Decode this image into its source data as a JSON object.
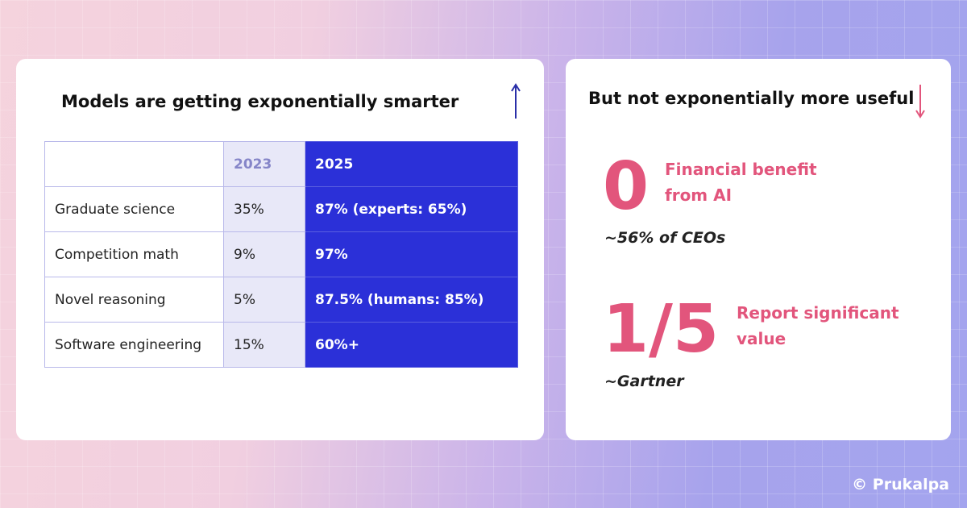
{
  "left_card": {
    "title": "Models are getting exponentially smarter",
    "table": {
      "headers": [
        "2023",
        "2025"
      ],
      "rows": [
        [
          "Graduate science",
          "35%",
          "87% (experts: 65%)"
        ],
        [
          "Competition math",
          "9%",
          "97%"
        ],
        [
          "Novel reasoning",
          "5%",
          "87.5% (humans: 85%)"
        ],
        [
          "Software engineering",
          "15%",
          "60%+"
        ]
      ]
    }
  },
  "right_card": {
    "title": "But not exponentially more useful",
    "stats": [
      {
        "value": "0",
        "label": "Financial benefit from AI",
        "source": "~56% of CEOs"
      },
      {
        "value": "1/5",
        "label": "Report significant value",
        "source": "~Gartner"
      }
    ]
  },
  "credit": "© Prukalpa"
}
